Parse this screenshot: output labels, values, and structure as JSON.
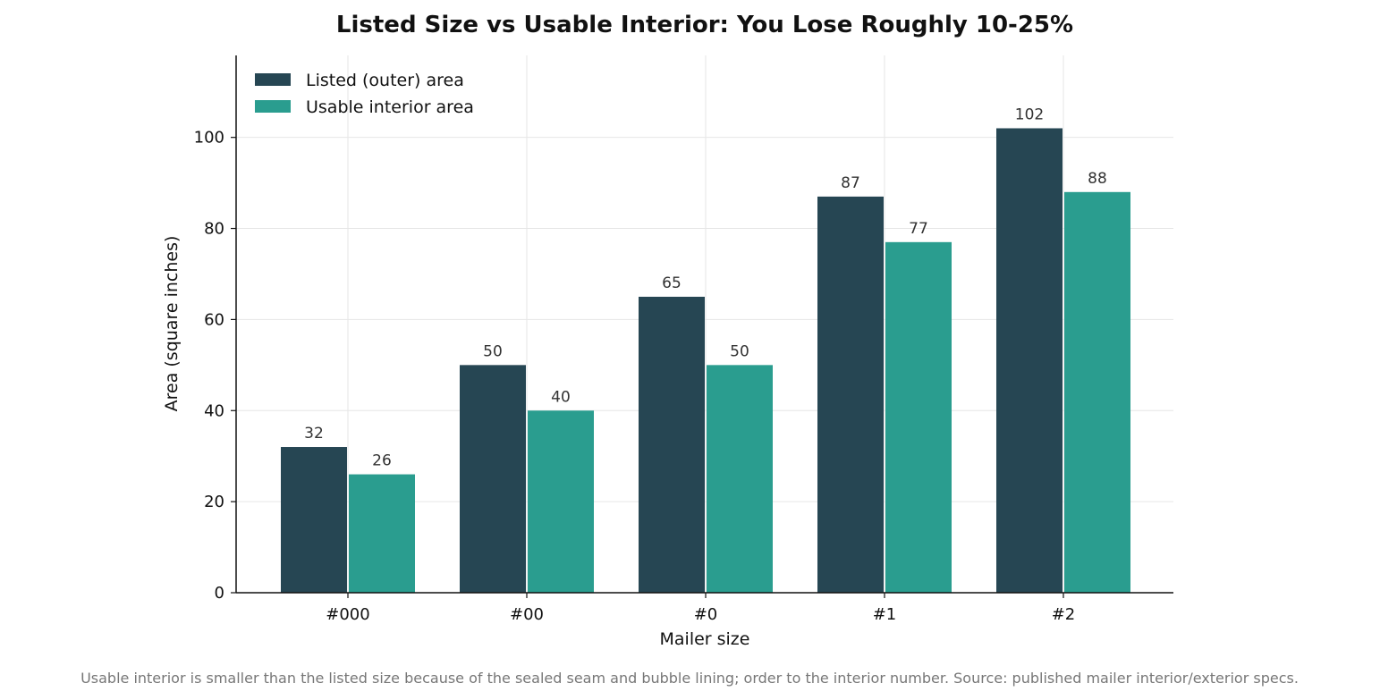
{
  "chart_data": {
    "type": "bar",
    "title": "Listed Size vs Usable Interior: You Lose Roughly 10-25%",
    "xlabel": "Mailer size",
    "ylabel": "Area (square inches)",
    "categories": [
      "#000",
      "#00",
      "#0",
      "#1",
      "#2"
    ],
    "series": [
      {
        "name": "Listed (outer) area",
        "values": [
          32,
          50,
          65,
          87,
          102
        ],
        "color": "#264653"
      },
      {
        "name": "Usable interior area",
        "values": [
          26,
          40,
          50,
          77,
          88
        ],
        "color": "#2a9d8f"
      }
    ],
    "ylim": [
      0,
      118
    ],
    "yticks": [
      0,
      20,
      40,
      60,
      80,
      100
    ],
    "grid": true,
    "legend": "top-left",
    "data_labels": true
  },
  "caption": "Usable interior is smaller than the listed size because of the sealed seam and bubble lining; order to the interior number. Source: published mailer interior/exterior specs."
}
